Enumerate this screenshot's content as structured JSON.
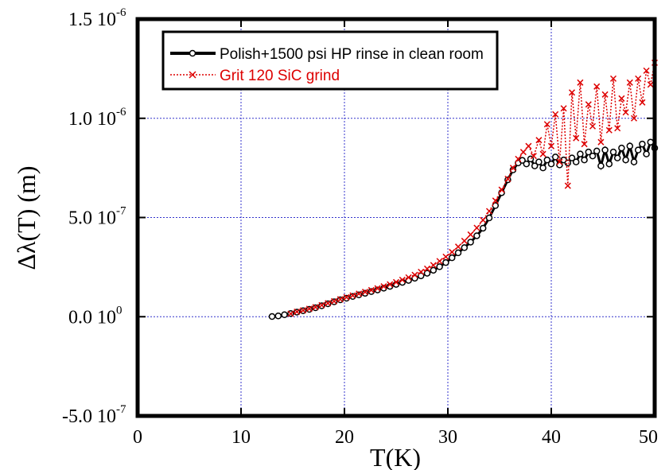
{
  "chart_data": {
    "type": "scatter",
    "xlabel": "T(K)",
    "ylabel": "Δλ(T) (m)",
    "xlim": [
      0,
      50
    ],
    "ylim": [
      -5e-07,
      1.5e-06
    ],
    "grid": true,
    "legend_position": "top-left",
    "x_ticks": [
      {
        "value": 0,
        "label": "0"
      },
      {
        "value": 10,
        "label": "10"
      },
      {
        "value": 20,
        "label": "20"
      },
      {
        "value": 30,
        "label": "30"
      },
      {
        "value": 40,
        "label": "40"
      },
      {
        "value": 50,
        "label": "50"
      }
    ],
    "y_ticks": [
      {
        "value": -5e-07,
        "mantissa": "-5.0 10",
        "exp": "-7"
      },
      {
        "value": 0,
        "mantissa": "0.0 10",
        "exp": "0"
      },
      {
        "value": 5e-07,
        "mantissa": "5.0 10",
        "exp": "-7"
      },
      {
        "value": 1e-06,
        "mantissa": "1.0 10",
        "exp": "-6"
      },
      {
        "value": 1.5e-06,
        "mantissa": "1.5 10",
        "exp": "-6"
      }
    ],
    "series": [
      {
        "name": "Polish+1500 psi HP rinse in clean room",
        "color": "#000000",
        "marker": "circle",
        "line": "solid",
        "x": [
          13.0,
          13.6,
          14.2,
          14.8,
          15.4,
          16.0,
          16.6,
          17.2,
          17.8,
          18.4,
          19.0,
          19.6,
          20.2,
          20.8,
          21.4,
          22.0,
          22.6,
          23.2,
          23.8,
          24.4,
          25.0,
          25.6,
          26.2,
          26.8,
          27.4,
          28.0,
          28.6,
          29.2,
          29.8,
          30.4,
          31.0,
          31.6,
          32.2,
          32.8,
          33.4,
          34.0,
          34.6,
          35.2,
          35.8,
          36.3,
          36.8,
          37.2,
          37.6,
          38.0,
          38.4,
          38.8,
          39.2,
          39.6,
          40.0,
          40.4,
          40.8,
          41.2,
          41.6,
          42.0,
          42.4,
          42.8,
          43.2,
          43.6,
          44.0,
          44.4,
          44.8,
          45.2,
          45.6,
          46.0,
          46.4,
          46.8,
          47.2,
          47.6,
          48.0,
          48.4,
          48.8,
          49.2,
          49.6,
          50.0
        ],
        "y": [
          1e-09,
          4e-09,
          1e-08,
          1.6e-08,
          2.3e-08,
          3e-08,
          3.7e-08,
          4.5e-08,
          5.5e-08,
          6.5e-08,
          7.5e-08,
          8.5e-08,
          9.3e-08,
          1.02e-07,
          1.1e-07,
          1.18e-07,
          1.27e-07,
          1.35e-07,
          1.44e-07,
          1.53e-07,
          1.63e-07,
          1.73e-07,
          1.83e-07,
          1.94e-07,
          2.06e-07,
          2.19e-07,
          2.34e-07,
          2.52e-07,
          2.73e-07,
          2.97e-07,
          3.22e-07,
          3.48e-07,
          3.76e-07,
          4.08e-07,
          4.46e-07,
          4.98e-07,
          5.6e-07,
          6.25e-07,
          6.9e-07,
          7.4e-07,
          7.75e-07,
          7.88e-07,
          7.7e-07,
          7.95e-07,
          7.6e-07,
          7.8e-07,
          7.5e-07,
          7.9e-07,
          7.7e-07,
          8.05e-07,
          7.65e-07,
          7.9e-07,
          7.75e-07,
          8e-07,
          7.8e-07,
          8.2e-07,
          7.9e-07,
          8.3e-07,
          8.1e-07,
          8.35e-07,
          7.6e-07,
          8.4e-07,
          7.7e-07,
          8.3e-07,
          8e-07,
          8.5e-07,
          7.9e-07,
          8.6e-07,
          7.8e-07,
          8.4e-07,
          8.7e-07,
          8.2e-07,
          8.8e-07,
          8.5e-07
        ]
      },
      {
        "name": "Grit 120 SiC grind",
        "color": "#dd0000",
        "marker": "x",
        "line": "dotted",
        "x": [
          14.8,
          15.4,
          16.0,
          16.6,
          17.2,
          17.8,
          18.4,
          19.0,
          19.6,
          20.2,
          20.8,
          21.4,
          22.0,
          22.6,
          23.2,
          23.8,
          24.4,
          25.0,
          25.6,
          26.2,
          26.8,
          27.4,
          28.0,
          28.6,
          29.2,
          29.8,
          30.4,
          31.0,
          31.6,
          32.2,
          32.8,
          33.4,
          34.0,
          34.6,
          35.2,
          35.8,
          36.3,
          36.8,
          37.3,
          37.8,
          38.3,
          38.8,
          39.2,
          39.6,
          40.0,
          40.4,
          40.8,
          41.2,
          41.6,
          42.0,
          42.4,
          42.8,
          43.2,
          43.6,
          44.0,
          44.4,
          44.8,
          45.2,
          45.6,
          46.0,
          46.4,
          46.8,
          47.2,
          47.6,
          48.0,
          48.4,
          48.8,
          49.2,
          49.6,
          50.0
        ],
        "y": [
          1.5e-08,
          2.5e-08,
          3.2e-08,
          4e-08,
          4.8e-08,
          5.8e-08,
          6.8e-08,
          7.8e-08,
          8.8e-08,
          9.8e-08,
          1.07e-07,
          1.16e-07,
          1.25e-07,
          1.34e-07,
          1.43e-07,
          1.53e-07,
          1.63e-07,
          1.74e-07,
          1.86e-07,
          1.98e-07,
          2.11e-07,
          2.26e-07,
          2.42e-07,
          2.6e-07,
          2.8e-07,
          3.02e-07,
          3.26e-07,
          3.53e-07,
          3.82e-07,
          4.14e-07,
          4.48e-07,
          4.87e-07,
          5.32e-07,
          5.85e-07,
          6.4e-07,
          6.95e-07,
          7.5e-07,
          7.95e-07,
          8.3e-07,
          8.6e-07,
          8.1e-07,
          8.9e-07,
          8.2e-07,
          9.7e-07,
          8.6e-07,
          1.02e-06,
          7.8e-07,
          1.05e-06,
          6.6e-07,
          1.13e-06,
          9e-07,
          1.18e-06,
          8.7e-07,
          1.07e-06,
          9.6e-07,
          1.16e-06,
          8.8e-07,
          1.12e-06,
          9.4e-07,
          1.2e-06,
          9.5e-07,
          1.1e-06,
          1.03e-06,
          1.18e-06,
          1e-06,
          1.2e-06,
          1.08e-06,
          1.24e-06,
          1.17e-06,
          1.28e-06
        ]
      }
    ]
  }
}
